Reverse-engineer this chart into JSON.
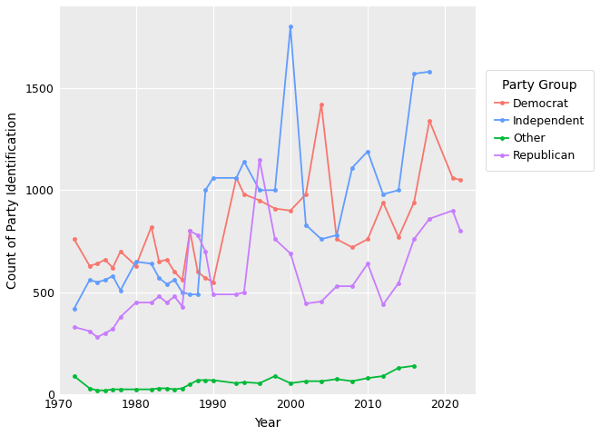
{
  "xlabel": "Year",
  "ylabel": "Count of Party Identification",
  "legend_title": "Party Group",
  "background_color": "#ffffff",
  "panel_background": "#ebebeb",
  "grid_color": "#ffffff",
  "colors": {
    "Democrat": "#F8766D",
    "Independent": "#619CFF",
    "Other": "#00BA38",
    "Republican": "#C77CFF"
  },
  "ylim": [
    0,
    1900
  ],
  "xlim": [
    1970,
    2024
  ],
  "yticks": [
    0,
    500,
    1000,
    1500
  ],
  "xticks": [
    1970,
    1980,
    1990,
    2000,
    2010,
    2020
  ],
  "democrat_years": [
    1972,
    1974,
    1975,
    1976,
    1977,
    1978,
    1980,
    1982,
    1983,
    1984,
    1985,
    1986,
    1987,
    1988,
    1989,
    1990,
    1993,
    1994,
    1996,
    1998,
    2000,
    2002,
    2004,
    2006,
    2008,
    2010,
    2012,
    2014,
    2016,
    2018,
    2021,
    2022
  ],
  "democrat_vals": [
    760,
    630,
    640,
    660,
    620,
    700,
    630,
    820,
    650,
    660,
    600,
    560,
    800,
    600,
    570,
    550,
    1060,
    980,
    950,
    910,
    900,
    980,
    1420,
    760,
    720,
    760,
    940,
    770,
    940,
    1340,
    1060,
    1050
  ],
  "independent_years": [
    1972,
    1974,
    1975,
    1976,
    1977,
    1978,
    1980,
    1982,
    1983,
    1984,
    1985,
    1986,
    1987,
    1988,
    1989,
    1990,
    1993,
    1994,
    1996,
    1998,
    2000,
    2002,
    2004,
    2006,
    2008,
    2010,
    2012,
    2014,
    2016,
    2018,
    2021,
    2022
  ],
  "independent_vals": [
    420,
    560,
    550,
    560,
    580,
    510,
    650,
    640,
    570,
    540,
    560,
    500,
    490,
    490,
    1000,
    1060,
    1060,
    1140,
    1000,
    1000,
    1800,
    830,
    760,
    780,
    1110,
    1190,
    980,
    1000,
    1570,
    1580,
    null,
    null
  ],
  "other_years": [
    1972,
    1974,
    1975,
    1976,
    1977,
    1978,
    1980,
    1982,
    1983,
    1984,
    1985,
    1986,
    1987,
    1988,
    1989,
    1990,
    1993,
    1994,
    1996,
    1998,
    2000,
    2002,
    2004,
    2006,
    2008,
    2010,
    2012,
    2014,
    2016,
    2018,
    2021,
    2022
  ],
  "other_vals": [
    90,
    30,
    20,
    20,
    25,
    25,
    25,
    25,
    30,
    30,
    25,
    30,
    50,
    70,
    70,
    70,
    55,
    60,
    55,
    90,
    55,
    65,
    65,
    75,
    65,
    80,
    90,
    130,
    140,
    null,
    null,
    null
  ],
  "republican_years": [
    1972,
    1974,
    1975,
    1976,
    1977,
    1978,
    1980,
    1982,
    1983,
    1984,
    1985,
    1986,
    1987,
    1988,
    1989,
    1990,
    1993,
    1994,
    1996,
    1998,
    2000,
    2002,
    2004,
    2006,
    2008,
    2010,
    2012,
    2014,
    2016,
    2018,
    2021,
    2022
  ],
  "republican_vals": [
    330,
    310,
    280,
    300,
    320,
    380,
    450,
    450,
    480,
    450,
    480,
    430,
    800,
    780,
    700,
    490,
    490,
    500,
    1150,
    760,
    690,
    445,
    455,
    530,
    530,
    640,
    440,
    545,
    760,
    860,
    900,
    800
  ]
}
